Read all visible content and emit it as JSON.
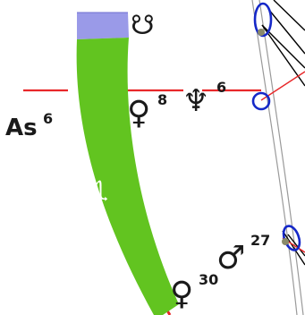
{
  "chart": {
    "ascendant": {
      "label": "As",
      "degree": "6"
    },
    "sign_band": {
      "sign_glyph": "♏",
      "color": "#62c420",
      "upper_color": "#9a9ae8"
    },
    "planets": [
      {
        "name": "Venus",
        "glyph": "♀",
        "degree": "8"
      },
      {
        "name": "Neptune",
        "glyph": "♆",
        "degree": "6"
      },
      {
        "name": "Mars",
        "glyph": "♂",
        "degree": "27"
      },
      {
        "name": "Venus",
        "glyph": "♀",
        "degree": "30"
      }
    ],
    "node": {
      "name": "South node",
      "glyph": "☋"
    },
    "colors": {
      "ascendant_line": "#e8282a",
      "aspect_blue": "#1528c8",
      "aspect_black": "#000000",
      "circle_line": "#9a9a9a"
    }
  }
}
